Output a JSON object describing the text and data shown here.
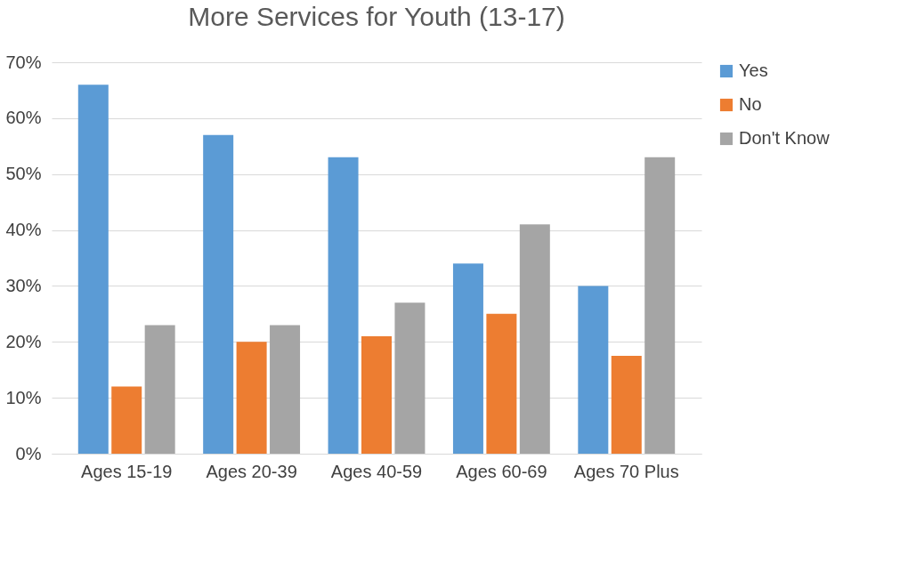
{
  "chart_data": {
    "type": "bar",
    "title": "More Services for Youth (13-17)",
    "categories": [
      "Ages 15-19",
      "Ages 20-39",
      "Ages 40-59",
      "Ages 60-69",
      "Ages 70 Plus"
    ],
    "series": [
      {
        "name": "Yes",
        "color": "#5b9bd5",
        "values": [
          66,
          57,
          53,
          34,
          30
        ]
      },
      {
        "name": "No",
        "color": "#ed7d31",
        "values": [
          12,
          20,
          21,
          25,
          17.5
        ]
      },
      {
        "name": "Don't Know",
        "color": "#a5a5a5",
        "values": [
          23,
          23,
          27,
          41,
          53
        ]
      }
    ],
    "ylim": [
      0,
      70
    ],
    "yticks": [
      {
        "value": 0,
        "label": "0%"
      },
      {
        "value": 10,
        "label": "10%"
      },
      {
        "value": 20,
        "label": "20%"
      },
      {
        "value": 30,
        "label": "30%"
      },
      {
        "value": 40,
        "label": "40%"
      },
      {
        "value": 50,
        "label": "50%"
      },
      {
        "value": 60,
        "label": "60%"
      },
      {
        "value": 70,
        "label": "70%"
      }
    ],
    "grid": "y",
    "legend": "right"
  }
}
